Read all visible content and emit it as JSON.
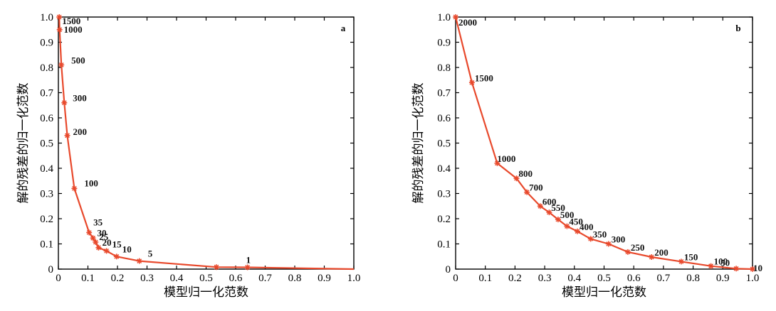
{
  "chart_data": [
    {
      "type": "line",
      "panel": "a",
      "xlabel": "模型归一化范数",
      "ylabel": "解的残差的归一化范数",
      "xlim": [
        0,
        1.0
      ],
      "ylim": [
        0,
        1.0
      ],
      "x_ticks": [
        "0",
        "0.1",
        "0.2",
        "0.3",
        "0.4",
        "0.5",
        "0.6",
        "0.7",
        "0.8",
        "0.9",
        "1.0"
      ],
      "y_ticks": [
        "0",
        "0.1",
        "0.2",
        "0.3",
        "0.4",
        "0.5",
        "0.6",
        "0.7",
        "0.8",
        "0.9",
        "1.0"
      ],
      "grid": false,
      "color": "#e8492c",
      "series": [
        {
          "x": [
            0.003,
            0.004,
            0.01,
            0.02,
            0.03,
            0.054,
            0.104,
            0.117,
            0.126,
            0.136,
            0.163,
            0.197,
            0.274,
            0.535,
            0.64
          ],
          "y": [
            1.0,
            0.95,
            0.81,
            0.66,
            0.53,
            0.32,
            0.145,
            0.123,
            0.107,
            0.085,
            0.072,
            0.05,
            0.032,
            0.008,
            0.007
          ],
          "labels": [
            "1500",
            "1000",
            "500",
            "300",
            "200",
            "100",
            "35",
            "30",
            "25",
            "20",
            "15",
            "10",
            "5",
            "",
            "1"
          ]
        }
      ]
    },
    {
      "type": "line",
      "panel": "b",
      "xlabel": "模型归一化范数",
      "ylabel": "解的残差的归一化范数",
      "xlim": [
        0,
        1.0
      ],
      "ylim": [
        0,
        1.0
      ],
      "x_ticks": [
        "0",
        "0.1",
        "0.2",
        "0.3",
        "0.4",
        "0.5",
        "0.6",
        "0.7",
        "0.8",
        "0.9",
        "1.0"
      ],
      "y_ticks": [
        "0",
        "0.1",
        "0.2",
        "0.3",
        "0.4",
        "0.5",
        "0.6",
        "0.7",
        "0.8",
        "0.9",
        "1.0"
      ],
      "grid": false,
      "color": "#e8492c",
      "series": [
        {
          "x": [
            0.0,
            0.055,
            0.14,
            0.205,
            0.24,
            0.285,
            0.315,
            0.345,
            0.375,
            0.41,
            0.455,
            0.515,
            0.58,
            0.66,
            0.76,
            0.86,
            0.945,
            1.0
          ],
          "y": [
            1.0,
            0.74,
            0.42,
            0.36,
            0.305,
            0.25,
            0.225,
            0.197,
            0.17,
            0.15,
            0.12,
            0.1,
            0.068,
            0.048,
            0.03,
            0.012,
            0.002,
            0.0
          ],
          "labels": [
            "2000",
            "1500",
            "1000",
            "800",
            "700",
            "600",
            "550",
            "500",
            "450",
            "400",
            "350",
            "300",
            "250",
            "200",
            "150",
            "100",
            "50",
            "10"
          ]
        }
      ]
    }
  ]
}
